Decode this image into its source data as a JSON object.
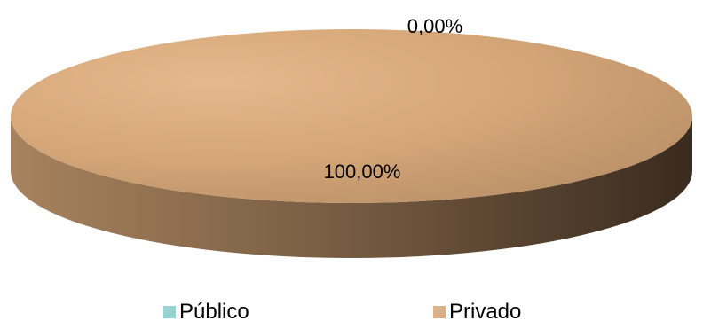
{
  "chart_data": {
    "type": "pie",
    "title": "",
    "categories": [
      "Público",
      "Privado"
    ],
    "values": [
      0.0,
      100.0
    ],
    "data_labels": [
      "0,00%",
      "100,00%"
    ],
    "colors": [
      "#8fcfd1",
      "#d9aa7a"
    ],
    "legend_position": "bottom"
  },
  "legend": {
    "items": [
      {
        "label": "Público",
        "color": "#8fcfd1"
      },
      {
        "label": "Privado",
        "color": "#d9aa7a"
      }
    ]
  }
}
